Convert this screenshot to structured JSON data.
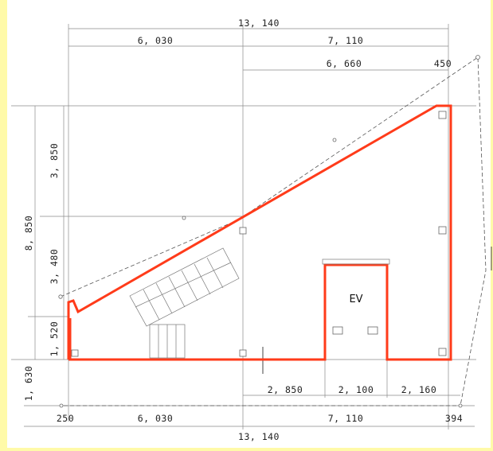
{
  "plan": {
    "overall_top": "13, 140",
    "left_top": "6, 030",
    "right_top": "7, 110",
    "right_sub": "6, 660",
    "right_end": "450",
    "height_total": "8, 850",
    "height_upper": "3, 850",
    "height_mid": "3, 480",
    "height_low": "1, 520",
    "height_below": "1, 630",
    "bottom_seg1": "2, 850",
    "bottom_seg2": "2, 100",
    "bottom_seg3": "2, 160",
    "left_offset": "250",
    "bottom_left": "6, 030",
    "bottom_right": "7, 110",
    "right_offset": "394",
    "overall_bottom": "13, 140",
    "elevator_label": "EV"
  },
  "colors": {
    "outline": "#ff3b1a",
    "dimension": "#666666",
    "background": "#fffaa8"
  }
}
